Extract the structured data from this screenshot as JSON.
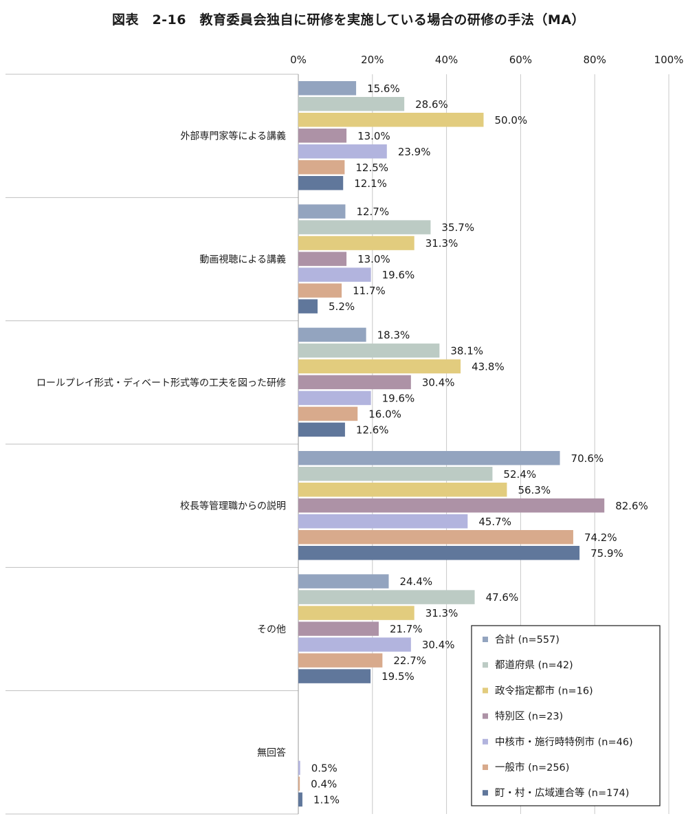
{
  "title": "図表　2-16　教育委員会独自に研修を実施している場合の研修の手法（MA）",
  "chart_data": {
    "type": "bar",
    "orientation": "horizontal",
    "title": "図表　2-16　教育委員会独自に研修を実施している場合の研修の手法（MA）",
    "xlim": [
      0,
      100
    ],
    "x_ticks": [
      "0%",
      "20%",
      "40%",
      "60%",
      "80%",
      "100%"
    ],
    "x_tick_values": [
      0,
      20,
      40,
      60,
      80,
      100
    ],
    "grid": true,
    "legend_position": "bottom-right",
    "categories": [
      "外部専門家等による講義",
      "動画視聴による講義",
      "ロールプレイ形式・ディベート形式等の工夫を図った研修",
      "校長等管理職からの説明",
      "その他",
      "無回答"
    ],
    "series": [
      {
        "name": "合計 (n=557)",
        "color": "#93a4bf",
        "values": [
          15.6,
          12.7,
          18.3,
          70.6,
          24.4,
          0.0
        ],
        "labels": [
          "15.6%",
          "12.7%",
          "18.3%",
          "70.6%",
          "24.4%",
          ""
        ]
      },
      {
        "name": "都道府県 (n=42)",
        "color": "#bccbc4",
        "values": [
          28.6,
          35.7,
          38.1,
          52.4,
          47.6,
          0.0
        ],
        "labels": [
          "28.6%",
          "35.7%",
          "38.1%",
          "52.4%",
          "47.6%",
          ""
        ]
      },
      {
        "name": "政令指定都市 (n=16)",
        "color": "#e2cc7e",
        "values": [
          50.0,
          31.3,
          43.8,
          56.3,
          31.3,
          0.0
        ],
        "labels": [
          "50.0%",
          "31.3%",
          "43.8%",
          "56.3%",
          "31.3%",
          ""
        ]
      },
      {
        "name": "特別区 (n=23)",
        "color": "#ad92a6",
        "values": [
          13.0,
          13.0,
          30.4,
          82.6,
          21.7,
          0.0
        ],
        "labels": [
          "13.0%",
          "13.0%",
          "30.4%",
          "82.6%",
          "21.7%",
          ""
        ]
      },
      {
        "name": "中核市・施行時特例市 (n=46)",
        "color": "#b2b4de",
        "values": [
          23.9,
          19.6,
          19.6,
          45.7,
          30.4,
          0.5
        ],
        "labels": [
          "23.9%",
          "19.6%",
          "19.6%",
          "45.7%",
          "30.4%",
          "0.5%"
        ]
      },
      {
        "name": "一般市 (n=256)",
        "color": "#d8aa8c",
        "values": [
          12.5,
          11.7,
          16.0,
          74.2,
          22.7,
          0.4
        ],
        "labels": [
          "12.5%",
          "11.7%",
          "16.0%",
          "74.2%",
          "22.7%",
          "0.4%"
        ]
      },
      {
        "name": "町・村・広域連合等 (n=174)",
        "color": "#60779b",
        "values": [
          12.1,
          5.2,
          12.6,
          75.9,
          19.5,
          1.1
        ],
        "labels": [
          "12.1%",
          "5.2%",
          "12.6%",
          "75.9%",
          "19.5%",
          "1.1%"
        ]
      }
    ]
  }
}
